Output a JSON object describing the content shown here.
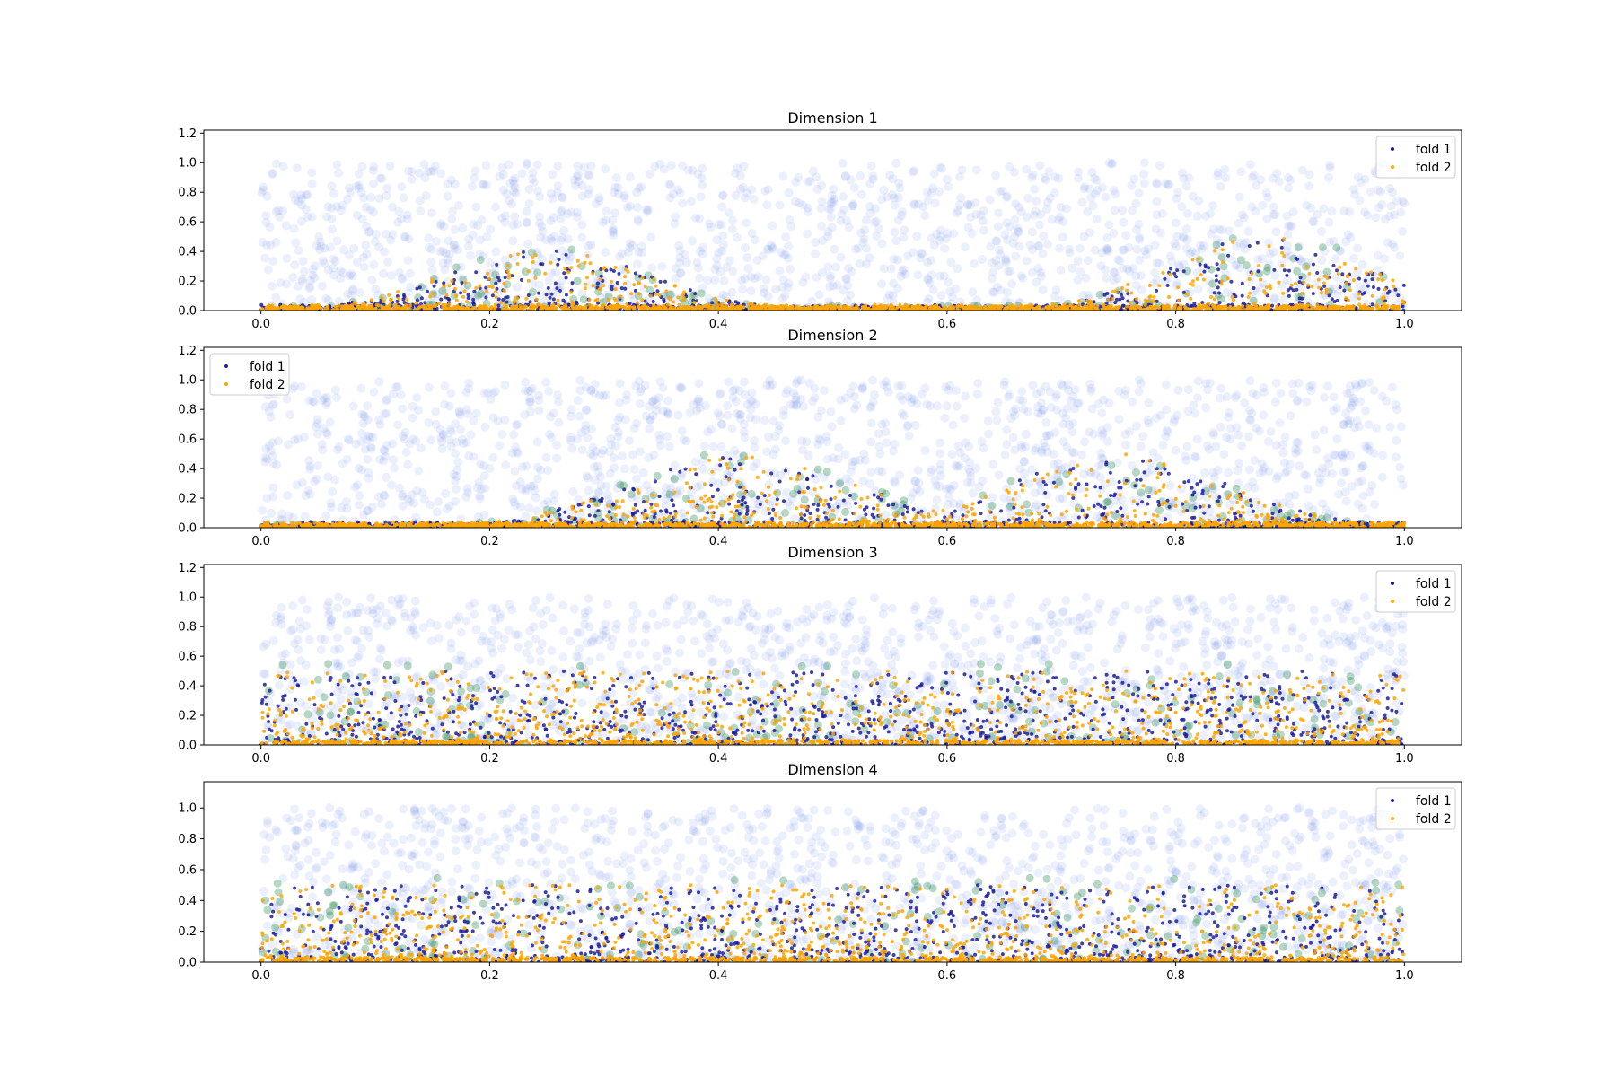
{
  "chart_data": [
    {
      "type": "scatter",
      "title": "Dimension 1",
      "xlim": [
        -0.05,
        1.05
      ],
      "ylim": [
        0,
        1.22
      ],
      "xticks": [
        "0.0",
        "0.2",
        "0.4",
        "0.6",
        "0.8",
        "1.0"
      ],
      "yticks": [
        "0.0",
        "0.2",
        "0.4",
        "0.6",
        "0.8",
        "1.0",
        "1.2"
      ],
      "legend": {
        "position": "top-right",
        "entries": [
          "fold 1",
          "fold 2"
        ]
      },
      "envelope": {
        "bumps": [
          [
            0.25,
            0.12,
            0.42
          ],
          [
            0.88,
            0.12,
            0.5
          ]
        ],
        "base": 0.03
      },
      "series": [
        {
          "name": "fold 1",
          "color": "#1f1f9e",
          "marker_size": 2
        },
        {
          "name": "fold 2",
          "color": "#ffa500",
          "marker_size": 2
        }
      ],
      "background_points": {
        "color": "#4169e1",
        "y_range": [
          0,
          1
        ],
        "alpha": 0.1
      },
      "overlap_points_color": "#2e8b57"
    },
    {
      "type": "scatter",
      "title": "Dimension 2",
      "xlim": [
        -0.05,
        1.05
      ],
      "ylim": [
        0,
        1.22
      ],
      "xticks": [
        "0.0",
        "0.2",
        "0.4",
        "0.6",
        "0.8",
        "1.0"
      ],
      "yticks": [
        "0.0",
        "0.2",
        "0.4",
        "0.6",
        "0.8",
        "1.0",
        "1.2"
      ],
      "legend": {
        "position": "top-left",
        "entries": [
          "fold 1",
          "fold 2"
        ]
      },
      "envelope": {
        "bumps": [
          [
            0.42,
            0.14,
            0.48
          ],
          [
            0.75,
            0.13,
            0.5
          ]
        ],
        "base": 0.02
      },
      "series": [
        {
          "name": "fold 1",
          "color": "#1f1f9e",
          "marker_size": 2
        },
        {
          "name": "fold 2",
          "color": "#ffa500",
          "marker_size": 2
        }
      ],
      "background_points": {
        "color": "#4169e1",
        "y_range": [
          0,
          1
        ],
        "alpha": 0.1
      },
      "overlap_points_color": "#2e8b57"
    },
    {
      "type": "scatter",
      "title": "Dimension 3",
      "xlim": [
        -0.05,
        1.05
      ],
      "ylim": [
        0,
        1.22
      ],
      "xticks": [
        "0.0",
        "0.2",
        "0.4",
        "0.6",
        "0.8",
        "1.0"
      ],
      "yticks": [
        "0.0",
        "0.2",
        "0.4",
        "0.6",
        "0.8",
        "1.0",
        "1.2"
      ],
      "legend": {
        "position": "top-right",
        "entries": [
          "fold 1",
          "fold 2"
        ]
      },
      "envelope": {
        "flat": 0.5
      },
      "series": [
        {
          "name": "fold 1",
          "color": "#1f1f9e",
          "marker_size": 2
        },
        {
          "name": "fold 2",
          "color": "#ffa500",
          "marker_size": 2
        }
      ],
      "background_points": {
        "color": "#4169e1",
        "y_range": [
          0,
          1
        ],
        "alpha": 0.1
      },
      "overlap_points_color": "#2e8b57"
    },
    {
      "type": "scatter",
      "title": "Dimension 4",
      "xlim": [
        -0.05,
        1.05
      ],
      "ylim": [
        0,
        1.17
      ],
      "xticks": [
        "0.0",
        "0.2",
        "0.4",
        "0.6",
        "0.8",
        "1.0"
      ],
      "yticks": [
        "0.0",
        "0.2",
        "0.4",
        "0.6",
        "0.8",
        "1.0"
      ],
      "legend": {
        "position": "top-right",
        "entries": [
          "fold 1",
          "fold 2"
        ]
      },
      "envelope": {
        "flat": 0.5
      },
      "series": [
        {
          "name": "fold 1",
          "color": "#1f1f9e",
          "marker_size": 2
        },
        {
          "name": "fold 2",
          "color": "#ffa500",
          "marker_size": 2
        }
      ],
      "background_points": {
        "color": "#4169e1",
        "y_range": [
          0,
          1
        ],
        "alpha": 0.1
      },
      "overlap_points_color": "#2e8b57"
    }
  ]
}
